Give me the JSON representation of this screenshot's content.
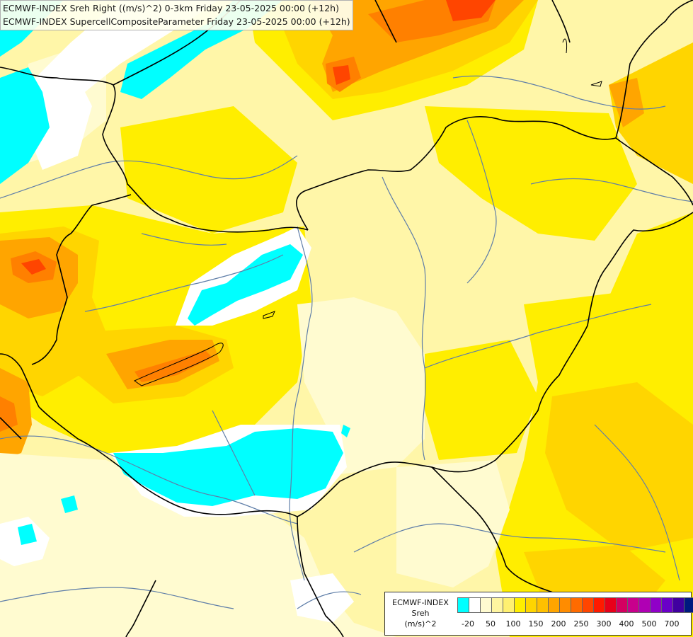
{
  "header": {
    "title_line_1": "ECMWF-INDEX Sreh Right ((m/s)^2) 0-3km Friday 23-05-2025 00:00 (+12h)",
    "title_line_2": "ECMWF-INDEX SupercellCompositeParameter Friday 23-05-2025 00:00 (+12h)"
  },
  "legend": {
    "source": "ECMWF-INDEX",
    "variable": "Sreh",
    "unit": "(m/s)^2",
    "colors": [
      "#00ffff",
      "#ffffff",
      "#fffbd0",
      "#fff5a0",
      "#fff070",
      "#ffee00",
      "#ffd500",
      "#ffc000",
      "#ffa500",
      "#ff8c00",
      "#ff6b00",
      "#ff4500",
      "#ff1a00",
      "#e8001a",
      "#d40060",
      "#c8008c",
      "#b000b4",
      "#9000c8",
      "#6a00c8",
      "#4000a0",
      "#001a80"
    ],
    "ticks": [
      "-20",
      "50",
      "100",
      "150",
      "200",
      "250",
      "300",
      "400",
      "500",
      "700"
    ]
  },
  "map": {
    "colors": {
      "background": "#fff6a8",
      "light_yellow": "#fffbd0",
      "yellow": "#ffee00",
      "gold": "#ffd500",
      "orange": "#ffa500",
      "dark_orange": "#ff8000",
      "red_orange": "#ff4500",
      "cyan": "#00ffff",
      "white": "#ffffff",
      "border": "#000000",
      "river": "#5f7ea8"
    }
  }
}
